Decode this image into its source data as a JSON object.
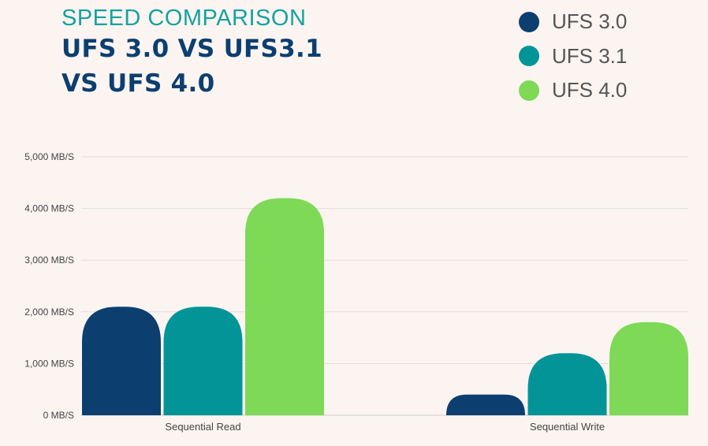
{
  "header": {
    "subtitle": "SPEED COMPARISON",
    "title_line1": "UFS 3.0 VS UFS3.1",
    "title_line2": "VS UFS 4.0"
  },
  "colors": {
    "background": "#fcf4f1",
    "gridline": "#dddddd",
    "axis_text": "#444444"
  },
  "chart_data": {
    "type": "bar",
    "categories": [
      "Sequential Read",
      "Sequential Write"
    ],
    "series": [
      {
        "name": "UFS 3.0",
        "color": "#0c3f70",
        "values": [
          2100,
          400
        ]
      },
      {
        "name": "UFS 3.1",
        "color": "#039497",
        "values": [
          2100,
          1200
        ]
      },
      {
        "name": "UFS 4.0",
        "color": "#7ed957",
        "values": [
          4200,
          1800
        ]
      }
    ],
    "ylim": [
      0,
      5000
    ],
    "yticks": [
      {
        "value": 0,
        "label": "0 MB/S"
      },
      {
        "value": 1000,
        "label": "1,000 MB/S"
      },
      {
        "value": 2000,
        "label": "2,000 MB/S"
      },
      {
        "value": 3000,
        "label": "3,000 MB/S"
      },
      {
        "value": 4000,
        "label": "4,000 MB/S"
      },
      {
        "value": 5000,
        "label": "5,000 MB/S"
      }
    ],
    "grid": true,
    "legend_position": "top-right",
    "bar_shape": "rounded-top"
  }
}
